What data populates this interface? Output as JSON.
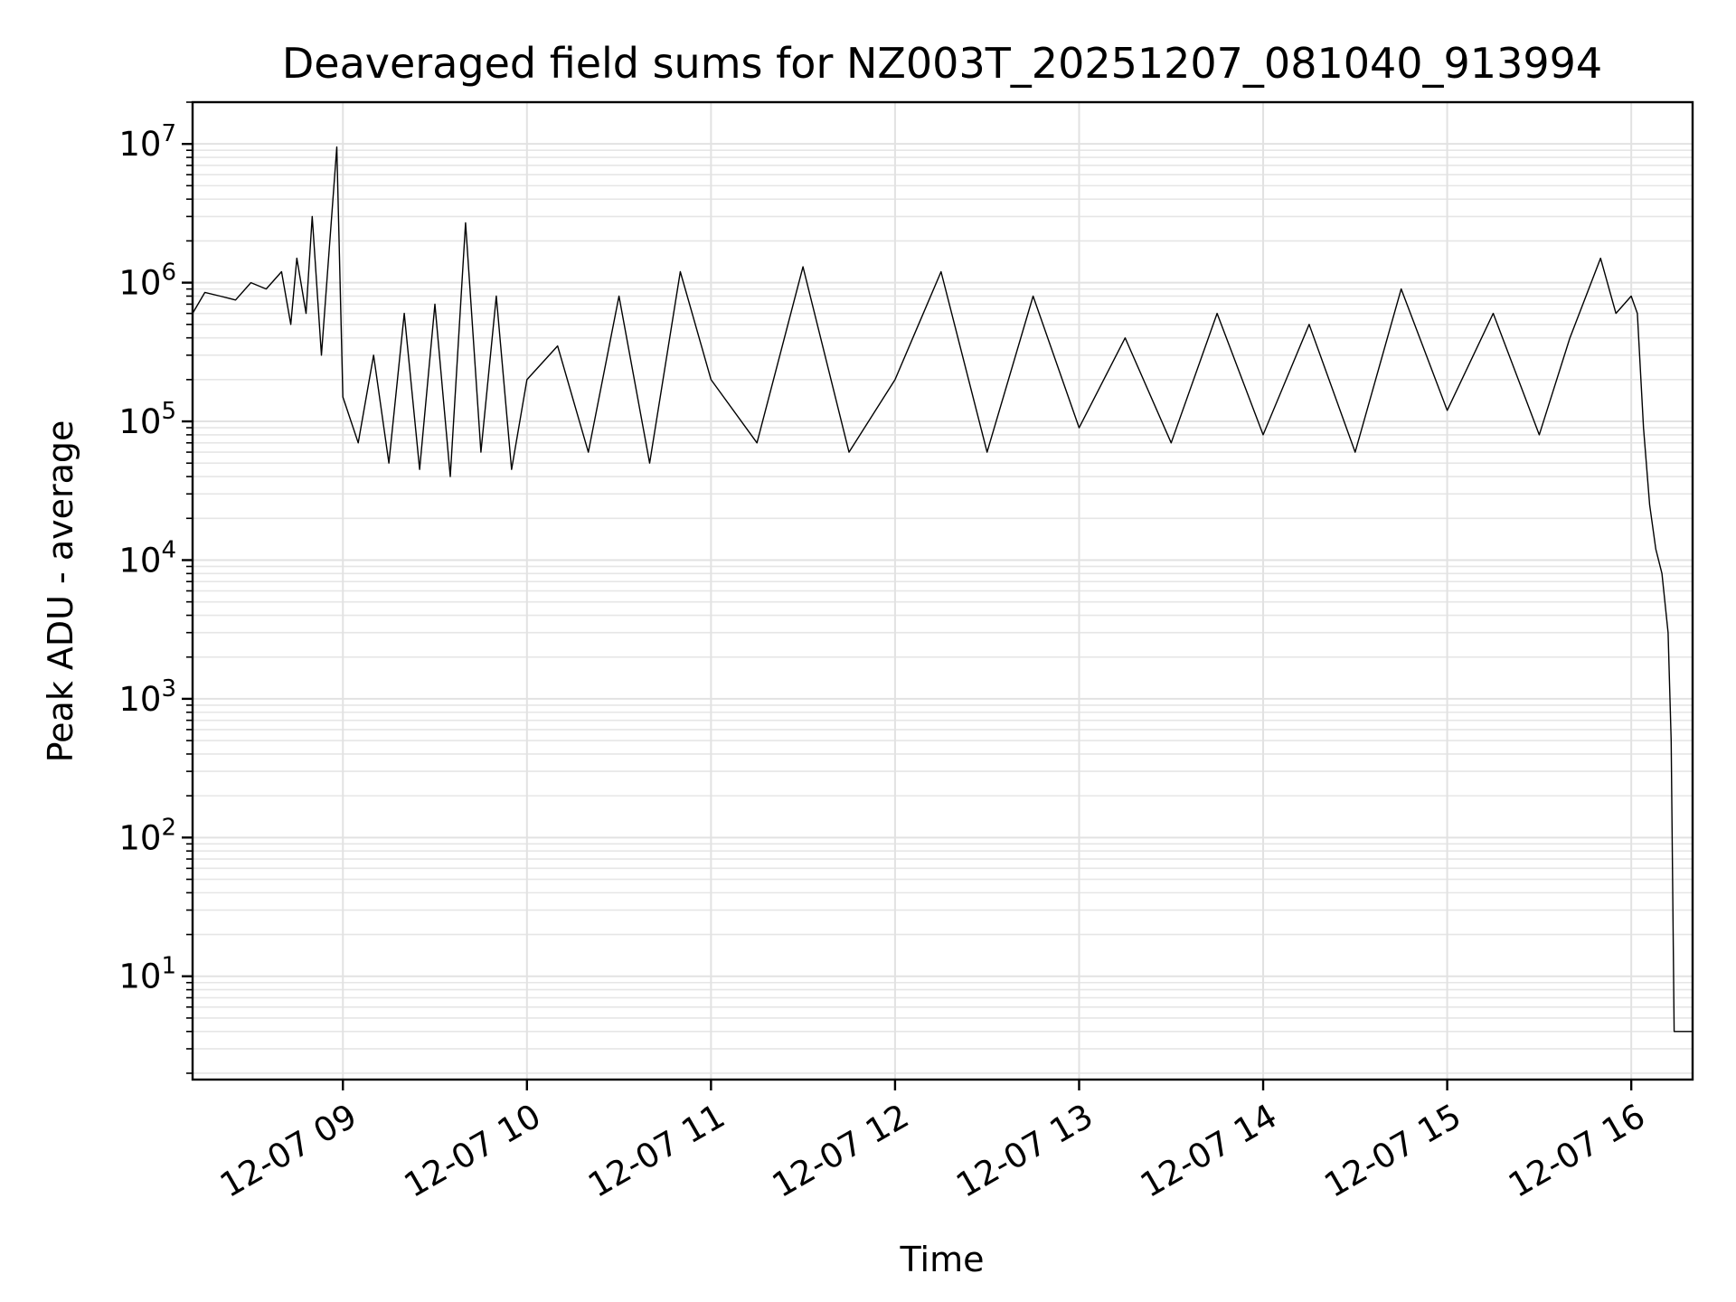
{
  "chart_data": {
    "type": "line",
    "title": "Deaveraged field sums for NZ003T_20251207_081040_913994",
    "xlabel": "Time",
    "ylabel": "Peak ADU - average",
    "yscale": "log",
    "grid": true,
    "legend": "none",
    "series_color": "#000000",
    "grid_color": "#e2e2e2",
    "xlim": [
      "2025-12-07 08:11",
      "2025-12-07 16:20"
    ],
    "ylim": [
      1.8,
      20000000
    ],
    "x_ticks": [
      {
        "value": "2025-12-07 09:00",
        "label": "12-07 09"
      },
      {
        "value": "2025-12-07 10:00",
        "label": "12-07 10"
      },
      {
        "value": "2025-12-07 11:00",
        "label": "12-07 11"
      },
      {
        "value": "2025-12-07 12:00",
        "label": "12-07 12"
      },
      {
        "value": "2025-12-07 13:00",
        "label": "12-07 13"
      },
      {
        "value": "2025-12-07 14:00",
        "label": "12-07 14"
      },
      {
        "value": "2025-12-07 15:00",
        "label": "12-07 15"
      },
      {
        "value": "2025-12-07 16:00",
        "label": "12-07 16"
      }
    ],
    "y_ticks": [
      {
        "value": 10,
        "base": "10",
        "exp": "1"
      },
      {
        "value": 100,
        "base": "10",
        "exp": "2"
      },
      {
        "value": 1000,
        "base": "10",
        "exp": "3"
      },
      {
        "value": 10000,
        "base": "10",
        "exp": "4"
      },
      {
        "value": 100000,
        "base": "10",
        "exp": "5"
      },
      {
        "value": 1000000,
        "base": "10",
        "exp": "6"
      },
      {
        "value": 10000000,
        "base": "10",
        "exp": "7"
      }
    ],
    "series": [
      {
        "x": [
          "2025-12-07 08:11",
          "2025-12-07 08:15",
          "2025-12-07 08:20",
          "2025-12-07 08:25",
          "2025-12-07 08:30",
          "2025-12-07 08:35",
          "2025-12-07 08:40",
          "2025-12-07 08:43",
          "2025-12-07 08:45",
          "2025-12-07 08:48",
          "2025-12-07 08:50",
          "2025-12-07 08:53",
          "2025-12-07 08:55",
          "2025-12-07 08:58",
          "2025-12-07 09:00",
          "2025-12-07 09:05",
          "2025-12-07 09:10",
          "2025-12-07 09:15",
          "2025-12-07 09:20",
          "2025-12-07 09:25",
          "2025-12-07 09:30",
          "2025-12-07 09:35",
          "2025-12-07 09:40",
          "2025-12-07 09:45",
          "2025-12-07 09:50",
          "2025-12-07 09:55",
          "2025-12-07 10:00",
          "2025-12-07 10:10",
          "2025-12-07 10:20",
          "2025-12-07 10:30",
          "2025-12-07 10:40",
          "2025-12-07 10:50",
          "2025-12-07 11:00",
          "2025-12-07 11:15",
          "2025-12-07 11:30",
          "2025-12-07 11:45",
          "2025-12-07 12:00",
          "2025-12-07 12:15",
          "2025-12-07 12:30",
          "2025-12-07 12:45",
          "2025-12-07 13:00",
          "2025-12-07 13:15",
          "2025-12-07 13:30",
          "2025-12-07 13:45",
          "2025-12-07 14:00",
          "2025-12-07 14:15",
          "2025-12-07 14:30",
          "2025-12-07 14:45",
          "2025-12-07 15:00",
          "2025-12-07 15:15",
          "2025-12-07 15:30",
          "2025-12-07 15:40",
          "2025-12-07 15:50",
          "2025-12-07 15:55",
          "2025-12-07 16:00",
          "2025-12-07 16:02",
          "2025-12-07 16:04",
          "2025-12-07 16:06",
          "2025-12-07 16:08",
          "2025-12-07 16:10",
          "2025-12-07 16:12",
          "2025-12-07 16:13",
          "2025-12-07 16:14",
          "2025-12-07 16:20"
        ],
        "y": [
          600000,
          850000,
          800000,
          750000,
          1000000,
          900000,
          1200000,
          500000,
          1500000,
          600000,
          3000000,
          300000,
          1200000,
          9500000,
          150000,
          70000,
          300000,
          50000,
          600000,
          45000,
          700000,
          40000,
          2700000,
          60000,
          800000,
          45000,
          200000,
          350000,
          60000,
          800000,
          50000,
          1200000,
          200000,
          70000,
          1300000,
          60000,
          200000,
          1200000,
          60000,
          800000,
          90000,
          400000,
          70000,
          600000,
          80000,
          500000,
          60000,
          900000,
          120000,
          600000,
          80000,
          400000,
          1500000,
          600000,
          800000,
          600000,
          90000,
          25000,
          12000,
          8000,
          3000,
          500,
          4,
          4
        ]
      }
    ]
  }
}
